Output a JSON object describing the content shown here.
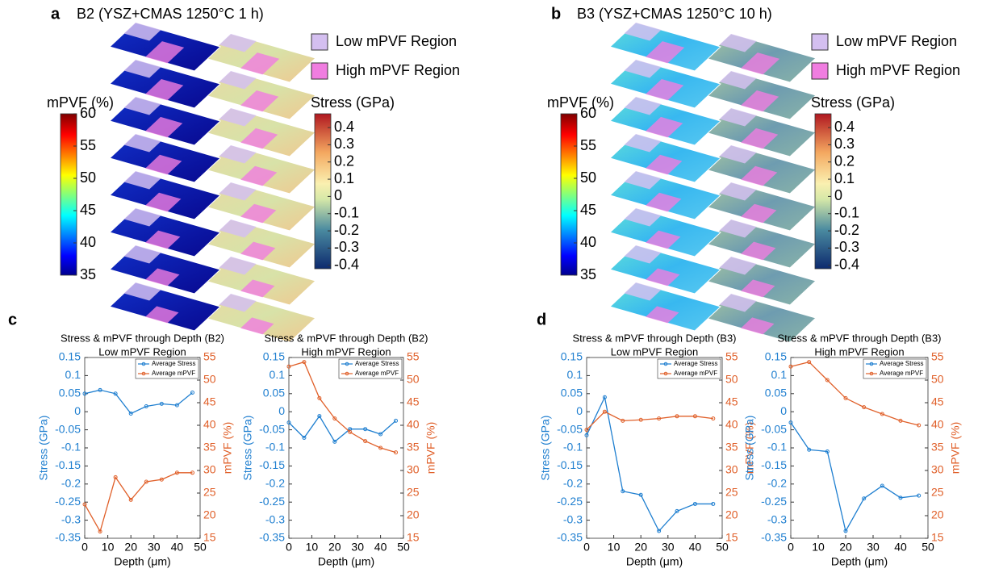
{
  "panel_a": {
    "letter": "a",
    "title": "B2 (YSZ+CMAS 1250°C 1 h)",
    "legend": [
      {
        "name": "Low mPVF Region",
        "color": "#d4bff0"
      },
      {
        "name": "High mPVF Region",
        "color": "#f07de0"
      }
    ],
    "mpvf_colorbar": {
      "label": "mPVF (%)",
      "lim": [
        35,
        60
      ],
      "ticks": [
        35,
        40,
        45,
        50,
        55,
        60
      ]
    },
    "stress_colorbar": {
      "label": "Stress (GPa)",
      "lim": [
        -0.42,
        0.48
      ],
      "ticks": [
        -0.4,
        -0.3,
        -0.2,
        -0.1,
        0,
        0.1,
        0.2,
        0.3,
        0.4
      ]
    }
  },
  "panel_b": {
    "letter": "b",
    "title": "B3 (YSZ+CMAS 1250°C 10 h)",
    "legend": [
      {
        "name": "Low mPVF Region",
        "color": "#d4bff0"
      },
      {
        "name": "High mPVF Region",
        "color": "#f07de0"
      }
    ],
    "mpvf_colorbar": {
      "label": "mPVF (%)",
      "lim": [
        35,
        60
      ],
      "ticks": [
        35,
        40,
        45,
        50,
        55,
        60
      ]
    },
    "stress_colorbar": {
      "label": "Stress (GPa)",
      "lim": [
        -0.42,
        0.48
      ],
      "ticks": [
        -0.4,
        -0.3,
        -0.2,
        -0.1,
        0,
        0.1,
        0.2,
        0.3,
        0.4
      ]
    }
  },
  "panel_c": {
    "letter": "c"
  },
  "panel_d": {
    "letter": "d"
  },
  "chart_data": [
    {
      "type": "line",
      "title": "Stress & mPVF through Depth (B2)",
      "subtitle": "Low mPVF Region",
      "x_label": "Depth (μm)",
      "y_label": "Stress (GPa)",
      "y2_label": "mPVF (%)",
      "x": [
        0,
        6.67,
        13.33,
        20,
        26.67,
        33.33,
        40,
        46.67
      ],
      "xlim": [
        0,
        50
      ],
      "xticks": [
        0,
        10,
        20,
        30,
        40,
        50
      ],
      "ylim": [
        -0.35,
        0.15
      ],
      "yticks": [
        -0.35,
        -0.3,
        -0.25,
        -0.2,
        -0.15,
        -0.1,
        -0.05,
        0,
        0.05,
        0.1,
        0.15
      ],
      "y2lim": [
        15,
        55
      ],
      "y2ticks": [
        15,
        20,
        25,
        30,
        35,
        40,
        45,
        50,
        55
      ],
      "legend": "upper right",
      "series": [
        {
          "name": "Average Stress",
          "color": "#1f7fd0",
          "values": [
            0.05,
            0.06,
            0.05,
            -0.005,
            0.015,
            0.022,
            0.018,
            0.053
          ]
        },
        {
          "name": "Average mPVF",
          "color": "#e0602a",
          "axis": "y2",
          "values": [
            22.5,
            16.5,
            28.5,
            23.5,
            27.5,
            28,
            29.5,
            29.5
          ]
        }
      ]
    },
    {
      "type": "line",
      "title": "Stress & mPVF through Depth (B2)",
      "subtitle": "High mPVF Region",
      "x_label": "Depth (μm)",
      "y_label": "Stress (GPa)",
      "y2_label": "mPVF (%)",
      "x": [
        0,
        6.67,
        13.33,
        20,
        26.67,
        33.33,
        40,
        46.67
      ],
      "xlim": [
        0,
        50
      ],
      "xticks": [
        0,
        10,
        20,
        30,
        40,
        50
      ],
      "ylim": [
        -0.35,
        0.15
      ],
      "yticks": [
        -0.35,
        -0.3,
        -0.25,
        -0.2,
        -0.15,
        -0.1,
        -0.05,
        0,
        0.05,
        0.1,
        0.15
      ],
      "y2lim": [
        15,
        55
      ],
      "y2ticks": [
        15,
        20,
        25,
        30,
        35,
        40,
        45,
        50,
        55
      ],
      "legend": "upper right",
      "series": [
        {
          "name": "Average Stress",
          "color": "#1f7fd0",
          "values": [
            -0.03,
            -0.072,
            -0.012,
            -0.083,
            -0.048,
            -0.048,
            -0.062,
            -0.025
          ]
        },
        {
          "name": "Average mPVF",
          "color": "#e0602a",
          "axis": "y2",
          "values": [
            53,
            54,
            46,
            41.5,
            38.5,
            36.5,
            35,
            34
          ]
        }
      ]
    },
    {
      "type": "line",
      "title": "Stress & mPVF through Depth (B3)",
      "subtitle": "Low mPVF Region",
      "x_label": "Depth (μm)",
      "y_label": "Stress (GPa)",
      "y2_label": "mPVF (%)",
      "x": [
        0,
        6.67,
        13.33,
        20,
        26.67,
        33.33,
        40,
        46.67
      ],
      "xlim": [
        0,
        50
      ],
      "xticks": [
        0,
        10,
        20,
        30,
        40,
        50
      ],
      "ylim": [
        -0.35,
        0.15
      ],
      "yticks": [
        -0.35,
        -0.3,
        -0.25,
        -0.2,
        -0.15,
        -0.1,
        -0.05,
        0,
        0.05,
        0.1,
        0.15
      ],
      "y2lim": [
        15,
        55
      ],
      "y2ticks": [
        15,
        20,
        25,
        30,
        35,
        40,
        45,
        50,
        55
      ],
      "legend": "upper right",
      "series": [
        {
          "name": "Average Stress",
          "color": "#1f7fd0",
          "values": [
            -0.065,
            0.04,
            -0.22,
            -0.23,
            -0.33,
            -0.275,
            -0.255,
            -0.255
          ]
        },
        {
          "name": "Average mPVF",
          "color": "#e0602a",
          "axis": "y2",
          "values": [
            39,
            43,
            41,
            41.2,
            41.5,
            42,
            42,
            41.5
          ]
        }
      ]
    },
    {
      "type": "line",
      "title": "Stress & mPVF through Depth (B3)",
      "subtitle": "High mPVF Region",
      "x_label": "Depth (μm)",
      "y_label": "Stress (GPa)",
      "y2_label": "mPVF (%)",
      "x": [
        0,
        6.67,
        13.33,
        20,
        26.67,
        33.33,
        40,
        46.67
      ],
      "xlim": [
        0,
        50
      ],
      "xticks": [
        0,
        10,
        20,
        30,
        40,
        50
      ],
      "ylim": [
        -0.35,
        0.15
      ],
      "yticks": [
        -0.35,
        -0.3,
        -0.25,
        -0.2,
        -0.15,
        -0.1,
        -0.05,
        0,
        0.05,
        0.1,
        0.15
      ],
      "y2lim": [
        15,
        55
      ],
      "y2ticks": [
        15,
        20,
        25,
        30,
        35,
        40,
        45,
        50,
        55
      ],
      "legend": "upper right",
      "series": [
        {
          "name": "Average Stress",
          "color": "#1f7fd0",
          "values": [
            -0.03,
            -0.105,
            -0.11,
            -0.33,
            -0.24,
            -0.205,
            -0.238,
            -0.232
          ]
        },
        {
          "name": "Average mPVF",
          "color": "#e0602a",
          "axis": "y2",
          "values": [
            53,
            54,
            50,
            46,
            44,
            42.5,
            41,
            40
          ]
        }
      ]
    }
  ]
}
